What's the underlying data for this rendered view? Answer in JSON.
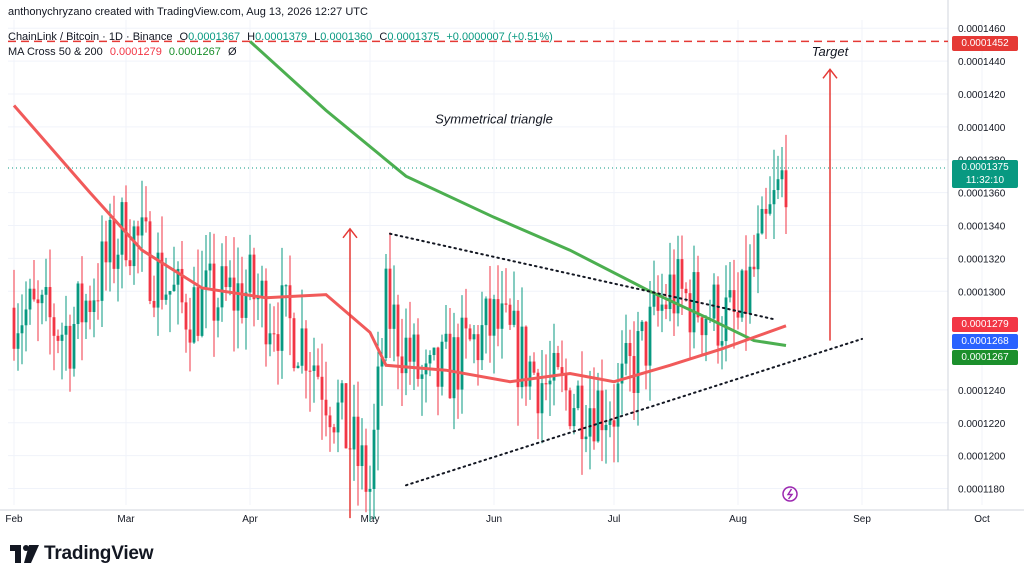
{
  "header": {
    "creator": "anthonychryzano created with TradingView.com, Aug 13, 2026 12:27 UTC",
    "symbol": "ChainLink / Bitcoin · 1D · Binance",
    "o_label": "O",
    "o_value": "0.0001367",
    "h_label": "H",
    "h_value": "0.0001379",
    "l_label": "L",
    "l_value": "0.0001360",
    "c_label": "C",
    "c_value": "0.0001375",
    "change": "+0.0000007 (+0.51%)",
    "indicator_name": "MA Cross 50 & 200",
    "ma50_value": "0.0001279",
    "ma200_value": "0.0001267",
    "indicator_extra": "Ø"
  },
  "annotations": {
    "target": "Target",
    "pattern": "Symmetrical triangle"
  },
  "price_tags": {
    "target": "0.0001452",
    "last_price": "0.0001375",
    "countdown": "11:32:10",
    "ma50": "0.0001279",
    "blue": "0.0001268",
    "ma200": "0.0001267"
  },
  "brand": {
    "name": "TradingView"
  },
  "colors": {
    "up": "#089981",
    "down": "#f23645",
    "ma50": "#f15a5a",
    "ma200": "#4caf50",
    "target_line": "#e53935",
    "blue_tag": "#2962ff",
    "ma200_tag": "#1b8f2c"
  },
  "chart_data": {
    "type": "candlestick",
    "x_ticks": [
      "Feb",
      "Mar",
      "Apr",
      "May",
      "Jun",
      "Jul",
      "Aug",
      "Sep",
      "Oct"
    ],
    "y_ticks": [
      "0.0001460",
      "0.0001440",
      "0.0001420",
      "0.0001400",
      "0.0001380",
      "0.0001360",
      "0.0001340",
      "0.0001320",
      "0.0001300",
      "0.0001240",
      "0.0001220",
      "0.0001200",
      "0.0001180"
    ],
    "ylim": [
      0.000117,
      0.0001465
    ],
    "target_level": 0.0001452,
    "close_series_approx": [
      {
        "date": "2026-02-01",
        "close": 0.000129
      },
      {
        "date": "2026-02-15",
        "close": 0.0001275
      },
      {
        "date": "2026-03-01",
        "close": 0.000134
      },
      {
        "date": "2026-03-15",
        "close": 0.000129
      },
      {
        "date": "2026-04-01",
        "close": 0.00013
      },
      {
        "date": "2026-04-15",
        "close": 0.000127
      },
      {
        "date": "2026-05-01",
        "close": 0.000118
      },
      {
        "date": "2026-05-05",
        "close": 0.000129
      },
      {
        "date": "2026-05-15",
        "close": 0.000124
      },
      {
        "date": "2026-06-01",
        "close": 0.000128
      },
      {
        "date": "2026-06-15",
        "close": 0.000124
      },
      {
        "date": "2026-07-01",
        "close": 0.000123
      },
      {
        "date": "2026-07-15",
        "close": 0.00013
      },
      {
        "date": "2026-08-01",
        "close": 0.000128
      },
      {
        "date": "2026-08-13",
        "close": 0.0001375
      }
    ]
  }
}
